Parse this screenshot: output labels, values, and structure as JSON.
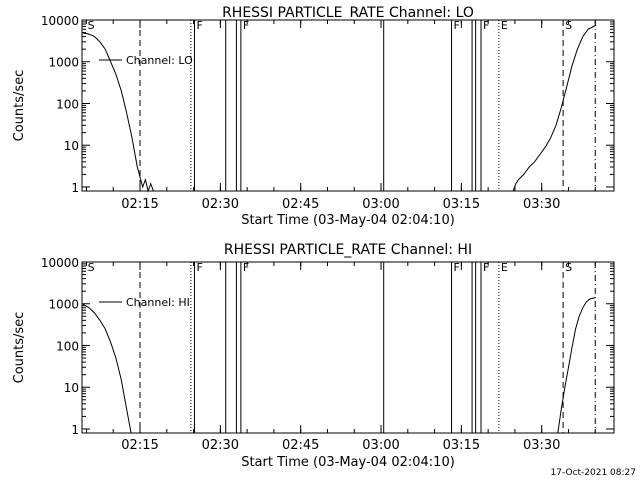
{
  "footer": {
    "timestamp": "17-Oct-2021 08:27"
  },
  "chart_data": [
    {
      "type": "line",
      "title": "RHESSI PARTICLE_RATE Channel: LO",
      "xlabel": "Start Time (03-May-04 02:04:10)",
      "ylabel": "Counts/sec",
      "yscale": "log",
      "ylim": [
        0.8,
        10000
      ],
      "xlim": [
        "02:04:10",
        "03:43:30"
      ],
      "x_ticks": [
        "02:15",
        "02:30",
        "02:45",
        "03:00",
        "03:15",
        "03:30"
      ],
      "y_ticks": [
        "1",
        "10",
        "100",
        "1000",
        "10000"
      ],
      "legend": {
        "label": "Channel: LO",
        "placement": "top-left"
      },
      "markers": [
        {
          "time": "02:04:50",
          "style": "none",
          "label": "S"
        },
        {
          "time": "02:15:00",
          "style": "dashed",
          "label": ""
        },
        {
          "time": "02:24:30",
          "style": "dotted",
          "label": ""
        },
        {
          "time": "02:25:10",
          "style": "solid",
          "label": "F"
        },
        {
          "time": "02:31:00",
          "style": "solid",
          "label": ""
        },
        {
          "time": "02:33:00",
          "style": "solid",
          "label": ""
        },
        {
          "time": "02:33:50",
          "style": "solid",
          "label": "F"
        },
        {
          "time": "03:00:30",
          "style": "solid",
          "label": ""
        },
        {
          "time": "03:13:10",
          "style": "solid",
          "label": "F"
        },
        {
          "time": "03:17:00",
          "style": "solid",
          "label": ""
        },
        {
          "time": "03:17:40",
          "style": "solid",
          "label": ""
        },
        {
          "time": "03:18:40",
          "style": "solid",
          "label": "F"
        },
        {
          "time": "03:22:00",
          "style": "dotted",
          "label": "E"
        },
        {
          "time": "03:34:00",
          "style": "dashed",
          "label": "S"
        },
        {
          "time": "03:40:00",
          "style": "dashdot",
          "label": ""
        }
      ],
      "series": [
        {
          "points": [
            [
              "02:04:10",
              5000
            ],
            [
              "02:05:30",
              4600
            ],
            [
              "02:06:30",
              4000
            ],
            [
              "02:07:30",
              3000
            ],
            [
              "02:08:30",
              2000
            ],
            [
              "02:09:30",
              1000
            ],
            [
              "02:10:30",
              500
            ],
            [
              "02:11:30",
              200
            ],
            [
              "02:12:30",
              60
            ],
            [
              "02:13:30",
              15
            ],
            [
              "02:14:30",
              3
            ],
            [
              "02:15:30",
              1
            ],
            [
              "02:16:00",
              1.5
            ],
            [
              "02:16:30",
              0.8
            ],
            [
              "02:17:00",
              1.2
            ],
            [
              "02:17:30",
              0.8
            ]
          ]
        },
        {
          "points": [
            [
              "03:24:40",
              0.8
            ],
            [
              "03:25:10",
              1.2
            ],
            [
              "03:25:40",
              1.5
            ],
            [
              "03:26:40",
              2
            ],
            [
              "03:27:40",
              3
            ],
            [
              "03:28:40",
              4
            ],
            [
              "03:29:40",
              6
            ],
            [
              "03:30:40",
              9
            ],
            [
              "03:31:40",
              15
            ],
            [
              "03:32:40",
              30
            ],
            [
              "03:33:40",
              80
            ],
            [
              "03:34:40",
              250
            ],
            [
              "03:35:40",
              800
            ],
            [
              "03:36:40",
              2000
            ],
            [
              "03:37:40",
              4000
            ],
            [
              "03:38:40",
              6000
            ],
            [
              "03:39:40",
              7000
            ],
            [
              "03:40:10",
              7500
            ]
          ]
        }
      ]
    },
    {
      "type": "line",
      "title": "RHESSI PARTICLE_RATE Channel: HI",
      "xlabel": "Start Time (03-May-04 02:04:10)",
      "ylabel": "Counts/sec",
      "yscale": "log",
      "ylim": [
        0.8,
        10000
      ],
      "xlim": [
        "02:04:10",
        "03:43:30"
      ],
      "x_ticks": [
        "02:15",
        "02:30",
        "02:45",
        "03:00",
        "03:15",
        "03:30"
      ],
      "y_ticks": [
        "1",
        "10",
        "100",
        "1000",
        "10000"
      ],
      "legend": {
        "label": "Channel: HI",
        "placement": "top-left"
      },
      "markers": [
        {
          "time": "02:04:50",
          "style": "none",
          "label": "S"
        },
        {
          "time": "02:15:00",
          "style": "dashed",
          "label": ""
        },
        {
          "time": "02:24:30",
          "style": "dotted",
          "label": ""
        },
        {
          "time": "02:25:10",
          "style": "solid",
          "label": "F"
        },
        {
          "time": "02:31:00",
          "style": "solid",
          "label": ""
        },
        {
          "time": "02:33:00",
          "style": "solid",
          "label": ""
        },
        {
          "time": "02:33:50",
          "style": "solid",
          "label": "F"
        },
        {
          "time": "03:00:30",
          "style": "solid",
          "label": ""
        },
        {
          "time": "03:13:10",
          "style": "solid",
          "label": "F"
        },
        {
          "time": "03:17:00",
          "style": "solid",
          "label": ""
        },
        {
          "time": "03:17:40",
          "style": "solid",
          "label": ""
        },
        {
          "time": "03:18:40",
          "style": "solid",
          "label": "F"
        },
        {
          "time": "03:22:00",
          "style": "dotted",
          "label": "E"
        },
        {
          "time": "03:34:00",
          "style": "dashed",
          "label": "S"
        },
        {
          "time": "03:40:00",
          "style": "dashdot",
          "label": ""
        }
      ],
      "series": [
        {
          "points": [
            [
              "02:04:10",
              1000
            ],
            [
              "02:05:30",
              800
            ],
            [
              "02:06:30",
              600
            ],
            [
              "02:07:30",
              400
            ],
            [
              "02:08:30",
              250
            ],
            [
              "02:09:30",
              120
            ],
            [
              "02:10:30",
              50
            ],
            [
              "02:11:30",
              15
            ],
            [
              "02:12:30",
              3
            ],
            [
              "02:13:20",
              0.8
            ]
          ]
        },
        {
          "points": [
            [
              "03:33:00",
              0.8
            ],
            [
              "03:33:40",
              3
            ],
            [
              "03:34:20",
              10
            ],
            [
              "03:35:00",
              30
            ],
            [
              "03:35:40",
              90
            ],
            [
              "03:36:20",
              250
            ],
            [
              "03:37:00",
              500
            ],
            [
              "03:37:40",
              800
            ],
            [
              "03:38:20",
              1100
            ],
            [
              "03:39:00",
              1300
            ],
            [
              "03:40:00",
              1400
            ]
          ]
        }
      ]
    }
  ]
}
